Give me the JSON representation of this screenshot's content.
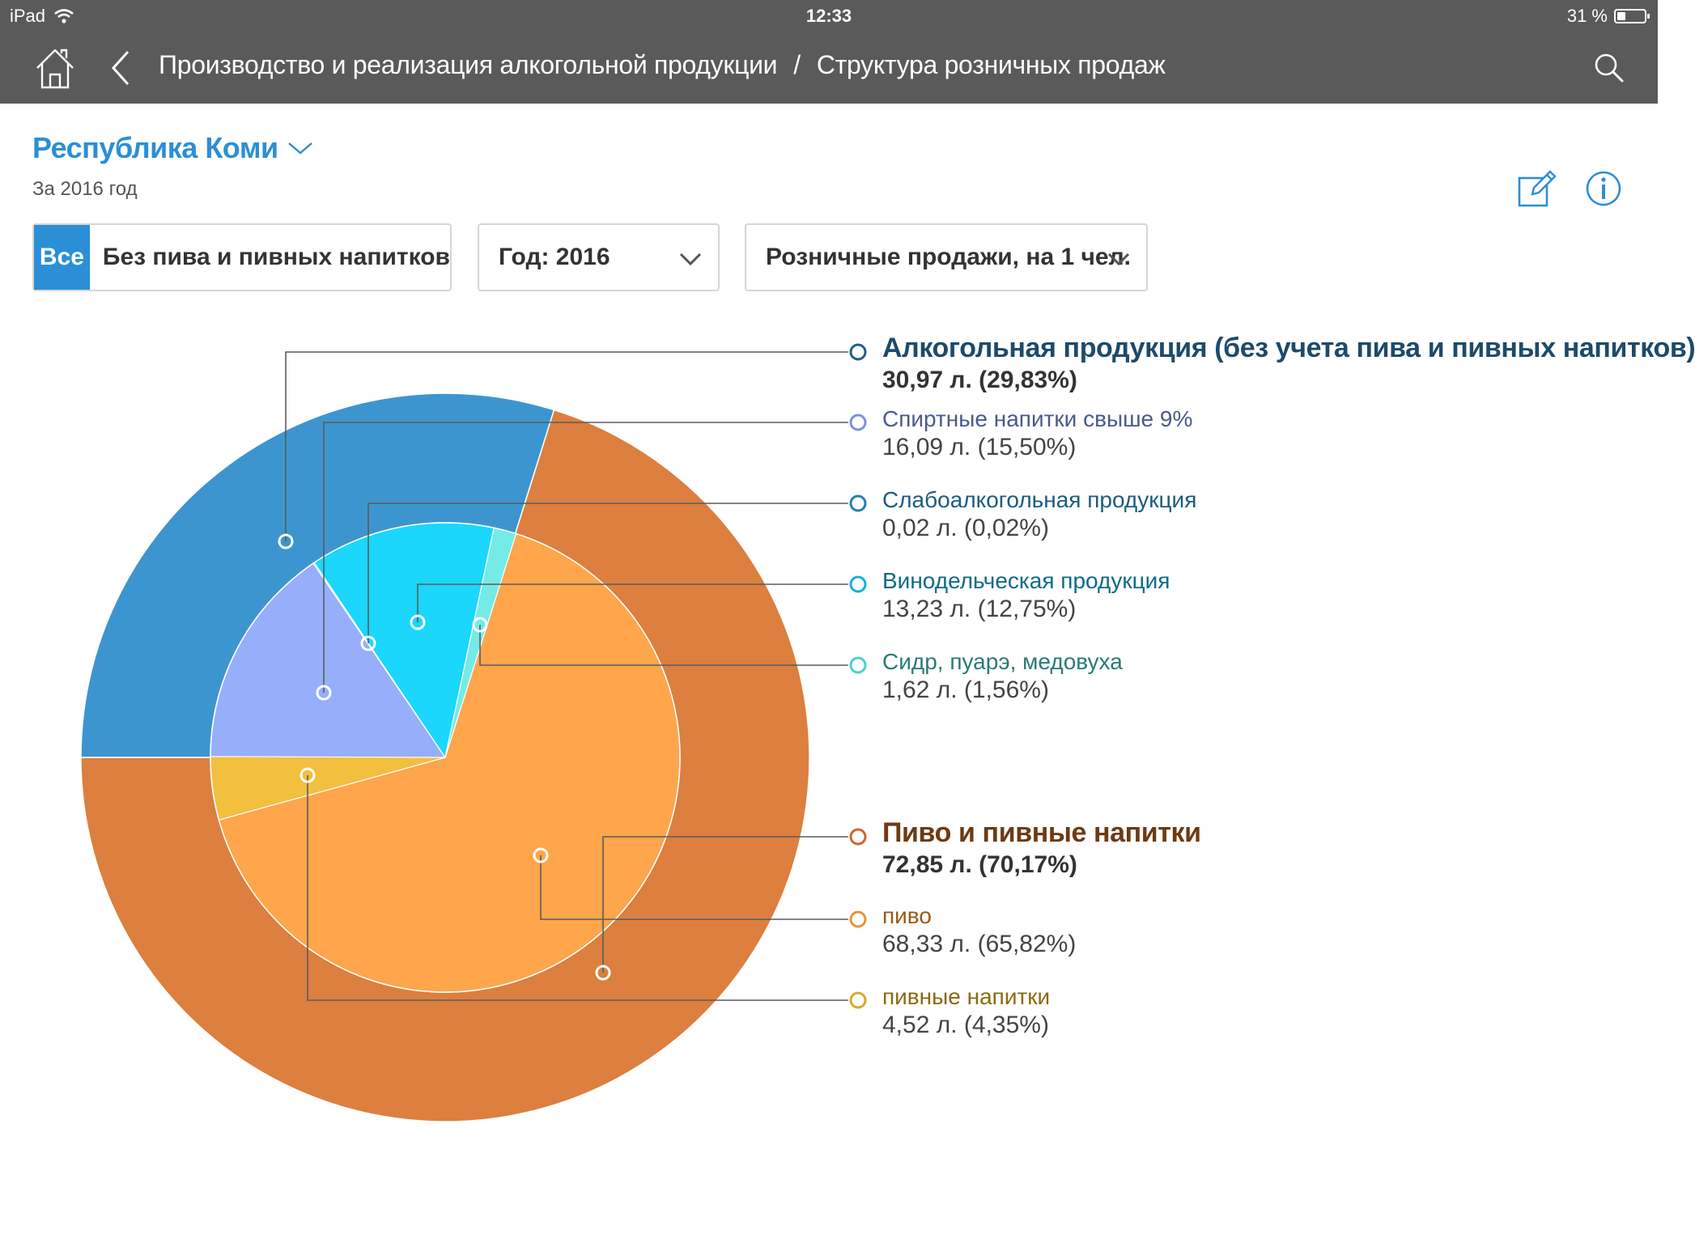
{
  "status": {
    "device": "iPad",
    "time": "12:33",
    "battery": "31 %"
  },
  "nav": {
    "crumbs": [
      "Производство и реализация алкогольной продукции",
      "/",
      "Структура розничных продаж"
    ]
  },
  "region": {
    "title": "Республика Коми",
    "subtitle": "За 2016 год"
  },
  "filters": {
    "segment_all": "Все",
    "segment_other": "Без пива и пивных напитков",
    "year": "Год: 2016",
    "metric": "Розничные продажи, на 1 чел."
  },
  "colors": {
    "accent": "#2b8fd6",
    "alcohol_outer": "#3d95cf",
    "beer_outer": "#dc7f3f",
    "spirits": "#96aefc",
    "low_alcohol": "#1e9fd0",
    "wine": "#1ad7fb",
    "cider": "#74ebe6",
    "beer": "#ffa54b",
    "beer_drinks": "#f2bf3f",
    "alcohol_text": "#1e4a6a",
    "beer_text": "#6e3a12"
  },
  "chart_data": {
    "type": "pie",
    "outer": [
      {
        "name": "Алкогольная продукция (без учета пива и пивных напитков)",
        "value_label": "30,97 л. (29,83%)",
        "value": 30.97,
        "percent": 29.83,
        "color_key": "alcohol_outer",
        "text_key": "alcohol_text"
      },
      {
        "name": "Пиво и пивные напитки",
        "value_label": "72,85 л. (70,17%)",
        "value": 72.85,
        "percent": 70.17,
        "color_key": "beer_outer",
        "text_key": "beer_text"
      }
    ],
    "inner": [
      {
        "name": "Спиртные напитки свыше 9%",
        "value_label": "16,09 л. (15,50%)",
        "value": 16.09,
        "percent": 15.5,
        "color_key": "spirits",
        "text_color": "#4a5a8c"
      },
      {
        "name": "Слабоалкогольная продукция",
        "value_label": "0,02 л. (0,02%)",
        "value": 0.02,
        "percent": 0.02,
        "color_key": "low_alcohol",
        "text_color": "#1b5c80"
      },
      {
        "name": "Винодельческая продукция",
        "value_label": "13,23 л. (12,75%)",
        "value": 13.23,
        "percent": 12.75,
        "color_key": "wine",
        "text_color": "#0f6b86"
      },
      {
        "name": "Сидр, пуарэ, медовуха",
        "value_label": "1,62 л. (1,56%)",
        "value": 1.62,
        "percent": 1.56,
        "color_key": "cider",
        "text_color": "#2a7a76"
      },
      {
        "name": "пиво",
        "value_label": "68,33 л. (65,82%)",
        "value": 68.33,
        "percent": 65.82,
        "color_key": "beer",
        "text_color": "#9a5a12"
      },
      {
        "name": "пивные напитки",
        "value_label": "4,52 л. (4,35%)",
        "value": 4.52,
        "percent": 4.35,
        "color_key": "beer_drinks",
        "text_color": "#8a6a10"
      }
    ]
  }
}
